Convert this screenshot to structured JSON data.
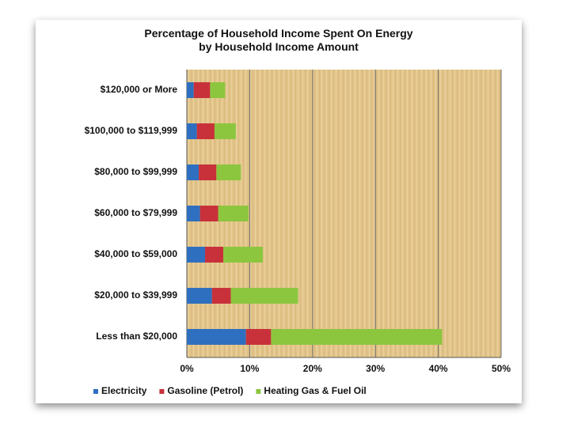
{
  "chart_data": {
    "type": "stacked-bar-horizontal",
    "title": "Percentage of Household Income Spent On Energy by Household Income Amount",
    "categories": [
      "$120,000 or More",
      "$100,000 to $119,999",
      "$80,000 to $99,999",
      "$60,000 to $79,999",
      "$40,000 to $59,000",
      "$20,000 to $39,999",
      "Less than $20,000"
    ],
    "series": [
      {
        "name": "Electricity",
        "color": "#2f6fc0",
        "values": [
          1.1,
          1.6,
          1.9,
          2.1,
          2.9,
          4.0,
          9.4
        ]
      },
      {
        "name": "Gasoline (Petrol)",
        "color": "#c8313a",
        "values": [
          2.6,
          2.8,
          2.8,
          2.9,
          2.9,
          3.0,
          4.0
        ]
      },
      {
        "name": "Heating Gas & Fuel Oil",
        "color": "#8cc63f",
        "values": [
          2.4,
          3.4,
          3.9,
          4.8,
          6.3,
          10.7,
          27.2
        ]
      }
    ],
    "xlim": [
      0,
      50
    ],
    "xticks": [
      {
        "value": 0,
        "label": "0%"
      },
      {
        "value": 10,
        "label": "10%"
      },
      {
        "value": 20,
        "label": "20%"
      },
      {
        "value": 30,
        "label": "30%"
      },
      {
        "value": 40,
        "label": "40%"
      },
      {
        "value": 50,
        "label": "50%"
      }
    ],
    "grid": true,
    "legend": "bottom"
  }
}
